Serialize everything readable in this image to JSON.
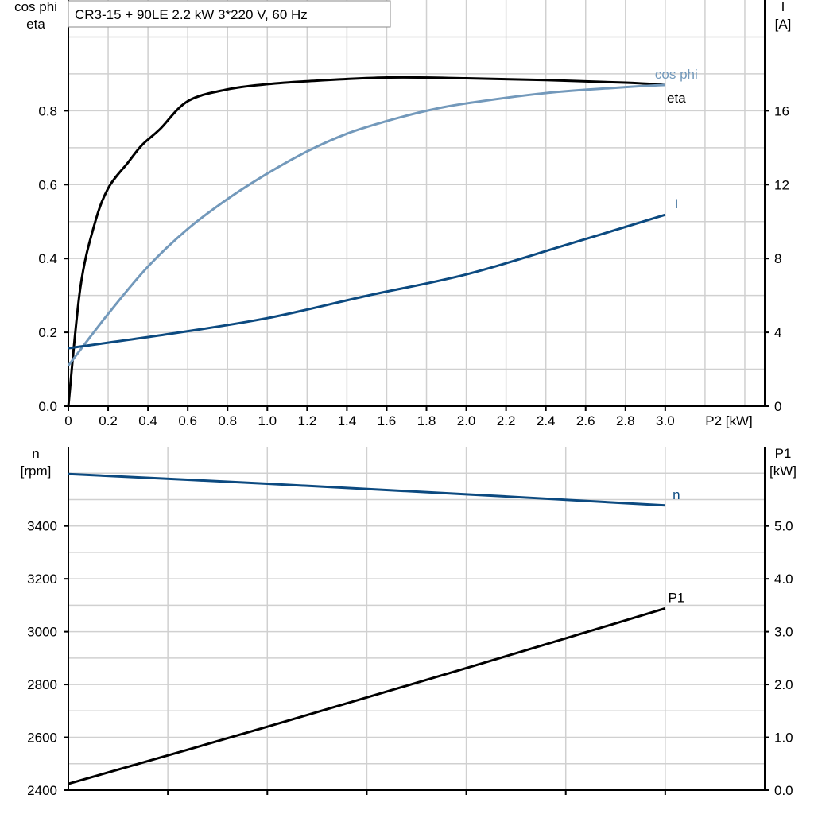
{
  "chart_data": [
    {
      "type": "line",
      "title": "CR3-15 + 90LE   2.2 kW   3*220 V, 60 Hz",
      "xlabel": "P2 [kW]",
      "ylabel_left": [
        "cos phi",
        "eta"
      ],
      "ylabel_right": [
        "I",
        "[A]"
      ],
      "xlim": [
        0,
        3.5
      ],
      "ylim_left": [
        0,
        1.1
      ],
      "ylim_right": [
        0,
        22
      ],
      "xticks": [
        "0",
        "0.2",
        "0.4",
        "0.6",
        "0.8",
        "1.0",
        "1.2",
        "1.4",
        "1.6",
        "1.8",
        "2.0",
        "2.2",
        "2.4",
        "2.6",
        "2.8",
        "3.0"
      ],
      "yticks_left": [
        "0.0",
        "0.2",
        "0.4",
        "0.6",
        "0.8"
      ],
      "yticks_right": [
        "0",
        "4",
        "8",
        "12",
        "16"
      ],
      "grid": true,
      "series": [
        {
          "name": "eta",
          "axis": "left",
          "color": "#000000",
          "x": [
            0,
            0.06,
            0.13,
            0.2,
            0.3,
            0.37,
            0.46,
            0.6,
            0.8,
            1.0,
            1.2,
            1.6,
            2.0,
            2.4,
            2.8,
            3.0
          ],
          "y": [
            0,
            0.32,
            0.49,
            0.59,
            0.66,
            0.707,
            0.75,
            0.826,
            0.858,
            0.872,
            0.88,
            0.89,
            0.888,
            0.883,
            0.876,
            0.87
          ]
        },
        {
          "name": "cos phi",
          "axis": "left",
          "color": "#7399bb",
          "x": [
            0,
            0.2,
            0.4,
            0.6,
            0.8,
            1.0,
            1.2,
            1.4,
            1.6,
            1.8,
            2.0,
            2.4,
            2.8,
            3.0
          ],
          "y": [
            0.11,
            0.25,
            0.378,
            0.48,
            0.561,
            0.63,
            0.69,
            0.738,
            0.772,
            0.8,
            0.82,
            0.848,
            0.864,
            0.87
          ]
        },
        {
          "name": "I",
          "axis": "right",
          "color": "#0c4a80",
          "x": [
            0,
            0.5,
            1.0,
            1.5,
            2.0,
            2.5,
            3.0
          ],
          "y": [
            3.14,
            3.9,
            4.77,
            5.98,
            7.14,
            8.73,
            10.37
          ]
        }
      ]
    },
    {
      "type": "line",
      "ylabel_left": [
        "n",
        "[rpm]"
      ],
      "ylabel_right": [
        "P1",
        "[kW]"
      ],
      "xlim": [
        0,
        3.5
      ],
      "ylim_left": [
        2400,
        3700
      ],
      "ylim_right": [
        0,
        6.5
      ],
      "yticks_left": [
        "2400",
        "2600",
        "2800",
        "3000",
        "3200",
        "3400"
      ],
      "yticks_right": [
        "0.0",
        "1.0",
        "2.0",
        "3.0",
        "4.0",
        "5.0"
      ],
      "grid": true,
      "series": [
        {
          "name": "n",
          "axis": "left",
          "color": "#0c4a80",
          "x": [
            0,
            1.0,
            2.0,
            3.0
          ],
          "y": [
            3597,
            3560,
            3520,
            3478
          ]
        },
        {
          "name": "P1",
          "axis": "right",
          "color": "#000000",
          "x": [
            0,
            1.0,
            2.0,
            3.0
          ],
          "y": [
            0.12,
            1.2,
            2.31,
            3.44
          ]
        }
      ]
    }
  ]
}
